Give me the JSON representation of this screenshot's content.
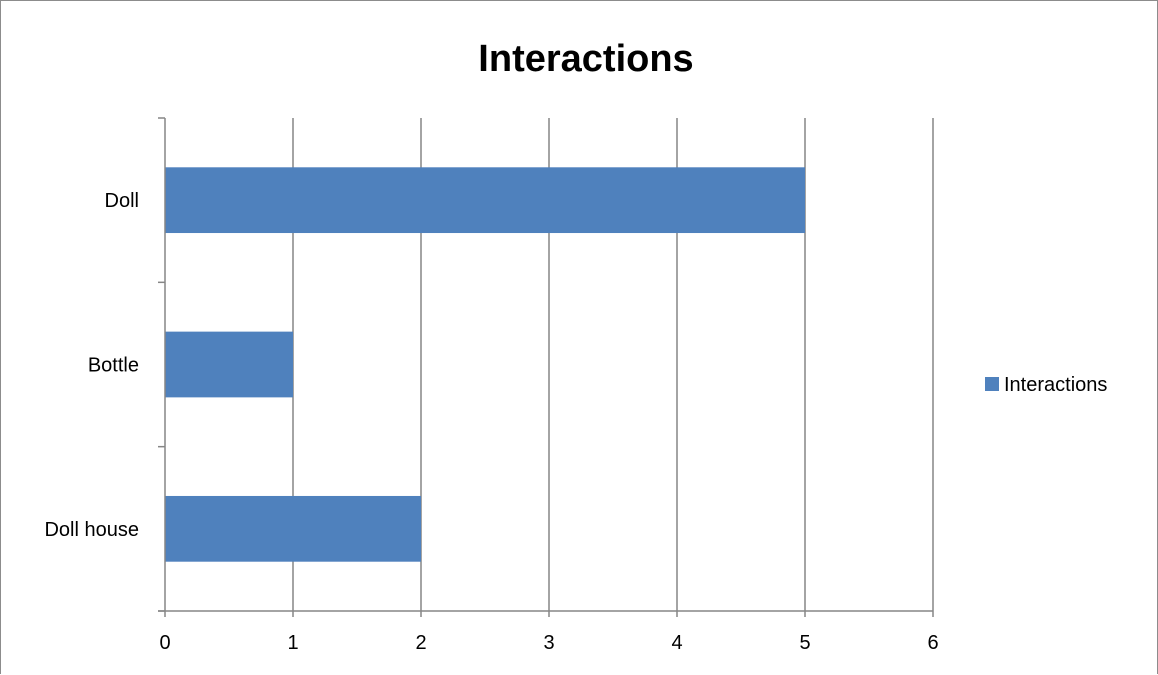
{
  "chart_data": {
    "type": "bar",
    "orientation": "horizontal",
    "title": "Interactions",
    "xlabel": "",
    "ylabel": "",
    "categories": [
      "Doll",
      "Bottle",
      "Doll house"
    ],
    "series": [
      {
        "name": "Interactions",
        "values": [
          5,
          1,
          2
        ]
      }
    ],
    "xlim": [
      0,
      6
    ],
    "x_ticks": [
      0,
      1,
      2,
      3,
      4,
      5,
      6
    ],
    "grid": "vertical",
    "legend": "right",
    "colors": {
      "bar": "#4F81BD",
      "grid": "#868686",
      "axis": "#868686"
    }
  }
}
